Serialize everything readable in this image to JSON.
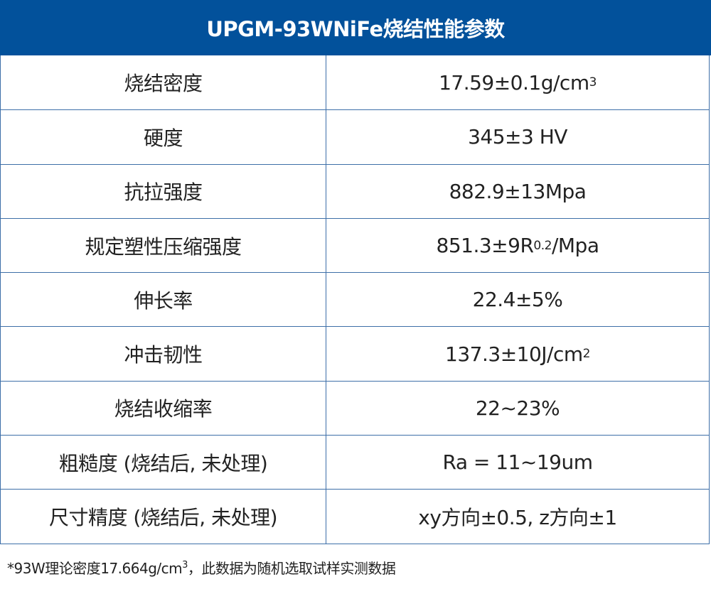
{
  "title": "UPGM-93WNiFe烧结性能参数",
  "colors": {
    "header_bg": "#02519b",
    "border": "#3d6fa8"
  },
  "rows": [
    {
      "label": "烧结密度",
      "value": "17.59±0.1g/cm",
      "sup": "3",
      "sub": "",
      "suffix": ""
    },
    {
      "label": "硬度",
      "value": "345±3 HV",
      "sup": "",
      "sub": "",
      "suffix": ""
    },
    {
      "label": "抗拉强度",
      "value": "882.9±13Mpa",
      "sup": "",
      "sub": "",
      "suffix": ""
    },
    {
      "label": "规定塑性压缩强度",
      "value": "851.3±9R",
      "sup": "",
      "sub": "0.2",
      "suffix": "/Mpa"
    },
    {
      "label": "伸长率",
      "value": "22.4±5%",
      "sup": "",
      "sub": "",
      "suffix": ""
    },
    {
      "label": "冲击韧性",
      "value": "137.3±10J/cm",
      "sup": "2",
      "sub": "",
      "suffix": ""
    },
    {
      "label": "烧结收缩率",
      "value": "22~23%",
      "sup": "",
      "sub": "",
      "suffix": ""
    },
    {
      "label": "粗糙度 (烧结后, 未处理)",
      "value": "Ra = 11~19um",
      "sup": "",
      "sub": "",
      "suffix": ""
    },
    {
      "label": "尺寸精度 (烧结后, 未处理)",
      "value": "xy方向±0.5, z方向±1",
      "sup": "",
      "sub": "",
      "suffix": ""
    }
  ],
  "footnote": {
    "prefix": "*93W理论密度17.664g/cm",
    "sup": "3",
    "suffix": "，此数据为随机选取试样实测数据"
  }
}
